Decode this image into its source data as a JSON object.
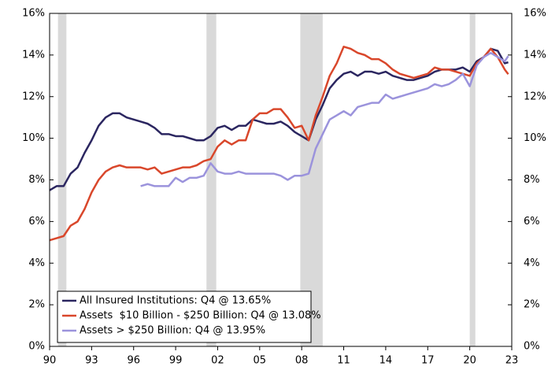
{
  "chart_data": {
    "type": "line",
    "x": [
      1990,
      1990.5,
      1991,
      1991.5,
      1992,
      1992.5,
      1993,
      1993.5,
      1994,
      1994.5,
      1995,
      1995.5,
      1996,
      1996.5,
      1997,
      1997.5,
      1998,
      1998.5,
      1999,
      1999.5,
      2000,
      2000.5,
      2001,
      2001.5,
      2002,
      2002.5,
      2003,
      2003.5,
      2004,
      2004.5,
      2005,
      2005.5,
      2006,
      2006.5,
      2007,
      2007.5,
      2008,
      2008.5,
      2009,
      2009.5,
      2010,
      2010.5,
      2011,
      2011.5,
      2012,
      2012.5,
      2013,
      2013.5,
      2014,
      2014.5,
      2015,
      2015.5,
      2016,
      2016.5,
      2017,
      2017.5,
      2018,
      2018.5,
      2019,
      2019.5,
      2020,
      2020.5,
      2021,
      2021.5,
      2022,
      2022.5,
      2022.75
    ],
    "series": [
      {
        "name": "All Insured Institutions: Q4 @ 13.65%",
        "color": "#2b2660",
        "values": [
          7.5,
          7.7,
          7.7,
          8.3,
          8.6,
          9.3,
          9.9,
          10.6,
          11.0,
          11.2,
          11.2,
          11.0,
          10.9,
          10.8,
          10.7,
          10.5,
          10.2,
          10.2,
          10.1,
          10.1,
          10.0,
          9.9,
          9.9,
          10.1,
          10.5,
          10.6,
          10.4,
          10.6,
          10.6,
          10.9,
          10.8,
          10.7,
          10.7,
          10.8,
          10.6,
          10.3,
          10.1,
          9.9,
          10.9,
          11.6,
          12.4,
          12.8,
          13.1,
          13.2,
          13.0,
          13.2,
          13.2,
          13.1,
          13.2,
          13.0,
          12.9,
          12.8,
          12.8,
          12.9,
          13.0,
          13.2,
          13.3,
          13.3,
          13.3,
          13.4,
          13.2,
          13.7,
          13.9,
          14.3,
          14.2,
          13.6,
          13.65
        ]
      },
      {
        "name": "Assets  $10 Billion - $250 Billion: Q4 @ 13.08%",
        "color": "#d9472b",
        "values": [
          5.1,
          5.2,
          5.3,
          5.8,
          6.0,
          6.6,
          7.4,
          8.0,
          8.4,
          8.6,
          8.7,
          8.6,
          8.6,
          8.6,
          8.5,
          8.6,
          8.3,
          8.4,
          8.5,
          8.6,
          8.6,
          8.7,
          8.9,
          9.0,
          9.6,
          9.9,
          9.7,
          9.9,
          9.9,
          10.9,
          11.2,
          11.2,
          11.4,
          11.4,
          11.0,
          10.5,
          10.6,
          9.9,
          11.1,
          12.0,
          13.0,
          13.6,
          14.4,
          14.3,
          14.1,
          14.0,
          13.8,
          13.8,
          13.6,
          13.3,
          13.1,
          13.0,
          12.9,
          13.0,
          13.1,
          13.4,
          13.3,
          13.3,
          13.2,
          13.1,
          13.0,
          13.6,
          13.9,
          14.3,
          13.9,
          13.3,
          13.08
        ]
      },
      {
        "name": "Assets > $250 Billion: Q4 @ 13.95%",
        "color": "#9b93dc",
        "values": [
          null,
          null,
          null,
          null,
          null,
          null,
          null,
          null,
          null,
          null,
          null,
          null,
          null,
          7.7,
          7.8,
          7.7,
          7.7,
          7.7,
          8.1,
          7.9,
          8.1,
          8.1,
          8.2,
          8.8,
          8.4,
          8.3,
          8.3,
          8.4,
          8.3,
          8.3,
          8.3,
          8.3,
          8.3,
          8.2,
          8.0,
          8.2,
          8.2,
          8.3,
          9.5,
          10.2,
          10.9,
          11.1,
          11.3,
          11.1,
          11.5,
          11.6,
          11.7,
          11.7,
          12.1,
          11.9,
          12.0,
          12.1,
          12.2,
          12.3,
          12.4,
          12.6,
          12.5,
          12.6,
          12.8,
          13.1,
          12.5,
          13.5,
          13.9,
          14.1,
          13.9,
          13.7,
          13.95
        ]
      }
    ],
    "shaded_periods": [
      {
        "start": 1990.6,
        "end": 1991.2
      },
      {
        "start": 2001.2,
        "end": 2001.9
      },
      {
        "start": 2007.9,
        "end": 2009.5
      },
      {
        "start": 2020.0,
        "end": 2020.4
      }
    ],
    "shade_color": "#d9d9d9",
    "xlim": [
      1990,
      2023
    ],
    "xticks": [
      {
        "value": 1990,
        "label": "90"
      },
      {
        "value": 1993,
        "label": "93"
      },
      {
        "value": 1996,
        "label": "96"
      },
      {
        "value": 1999,
        "label": "99"
      },
      {
        "value": 2002,
        "label": "02"
      },
      {
        "value": 2005,
        "label": "05"
      },
      {
        "value": 2008,
        "label": "08"
      },
      {
        "value": 2011,
        "label": "11"
      },
      {
        "value": 2014,
        "label": "14"
      },
      {
        "value": 2017,
        "label": "17"
      },
      {
        "value": 2020,
        "label": "20"
      },
      {
        "value": 2023,
        "label": "23"
      }
    ],
    "ylim": [
      0,
      16
    ],
    "yticks": [
      {
        "value": 0,
        "label": "0%"
      },
      {
        "value": 2,
        "label": "2%"
      },
      {
        "value": 4,
        "label": "4%"
      },
      {
        "value": 6,
        "label": "6%"
      },
      {
        "value": 8,
        "label": "8%"
      },
      {
        "value": 10,
        "label": "10%"
      },
      {
        "value": 12,
        "label": "12%"
      },
      {
        "value": 14,
        "label": "14%"
      },
      {
        "value": 16,
        "label": "16%"
      }
    ],
    "y2lim": [
      0,
      16
    ],
    "y2ticks": [
      {
        "value": 0,
        "label": "0%"
      },
      {
        "value": 2,
        "label": "2%"
      },
      {
        "value": 4,
        "label": "4%"
      },
      {
        "value": 6,
        "label": "6%"
      },
      {
        "value": 8,
        "label": "8%"
      },
      {
        "value": 10,
        "label": "10%"
      },
      {
        "value": 12,
        "label": "12%"
      },
      {
        "value": 14,
        "label": "14%"
      },
      {
        "value": 16,
        "label": "16%"
      }
    ],
    "legend": "lower left"
  }
}
